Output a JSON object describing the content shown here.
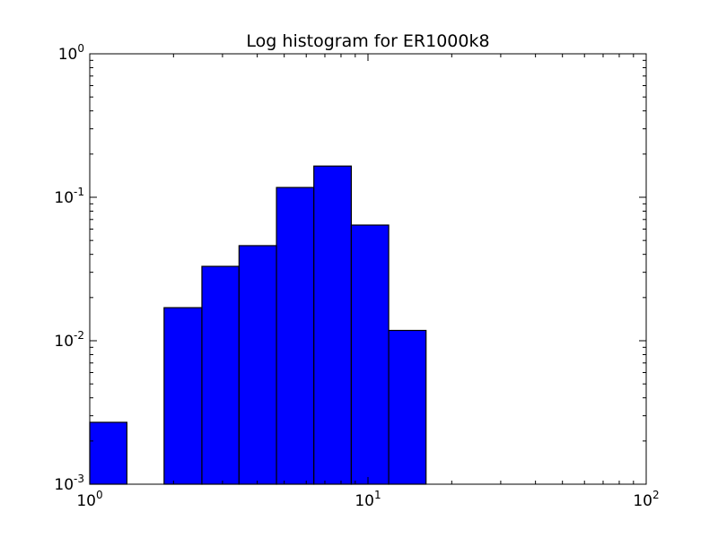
{
  "chart_data": {
    "type": "bar",
    "title": "Log histogram for ER1000k8",
    "xlabel": "",
    "ylabel": "",
    "xscale": "log",
    "yscale": "log",
    "xlim": [
      1,
      100
    ],
    "ylim": [
      0.001,
      1
    ],
    "grid": false,
    "bar_color": "#0000ff",
    "edge_color": "#000000",
    "bins": [
      {
        "x0": 1.0,
        "x1": 1.36,
        "value": 0.0027
      },
      {
        "x0": 1.36,
        "x1": 1.85,
        "value": 0
      },
      {
        "x0": 1.85,
        "x1": 2.53,
        "value": 0.017
      },
      {
        "x0": 2.53,
        "x1": 3.44,
        "value": 0.033
      },
      {
        "x0": 3.44,
        "x1": 4.69,
        "value": 0.046
      },
      {
        "x0": 4.69,
        "x1": 6.39,
        "value": 0.117
      },
      {
        "x0": 6.39,
        "x1": 8.71,
        "value": 0.165
      },
      {
        "x0": 8.71,
        "x1": 11.87,
        "value": 0.064
      },
      {
        "x0": 11.87,
        "x1": 16.17,
        "value": 0.0118
      }
    ],
    "x_ticks": [
      {
        "base": "10",
        "exp": "0",
        "value": 1
      },
      {
        "base": "10",
        "exp": "1",
        "value": 10
      },
      {
        "base": "10",
        "exp": "2",
        "value": 100
      }
    ],
    "y_ticks": [
      {
        "base": "10",
        "exp": "0",
        "value": 1
      },
      {
        "base": "10",
        "exp": "-1",
        "value": 0.1
      },
      {
        "base": "10",
        "exp": "-2",
        "value": 0.01
      },
      {
        "base": "10",
        "exp": "-3",
        "value": 0.001
      }
    ]
  }
}
